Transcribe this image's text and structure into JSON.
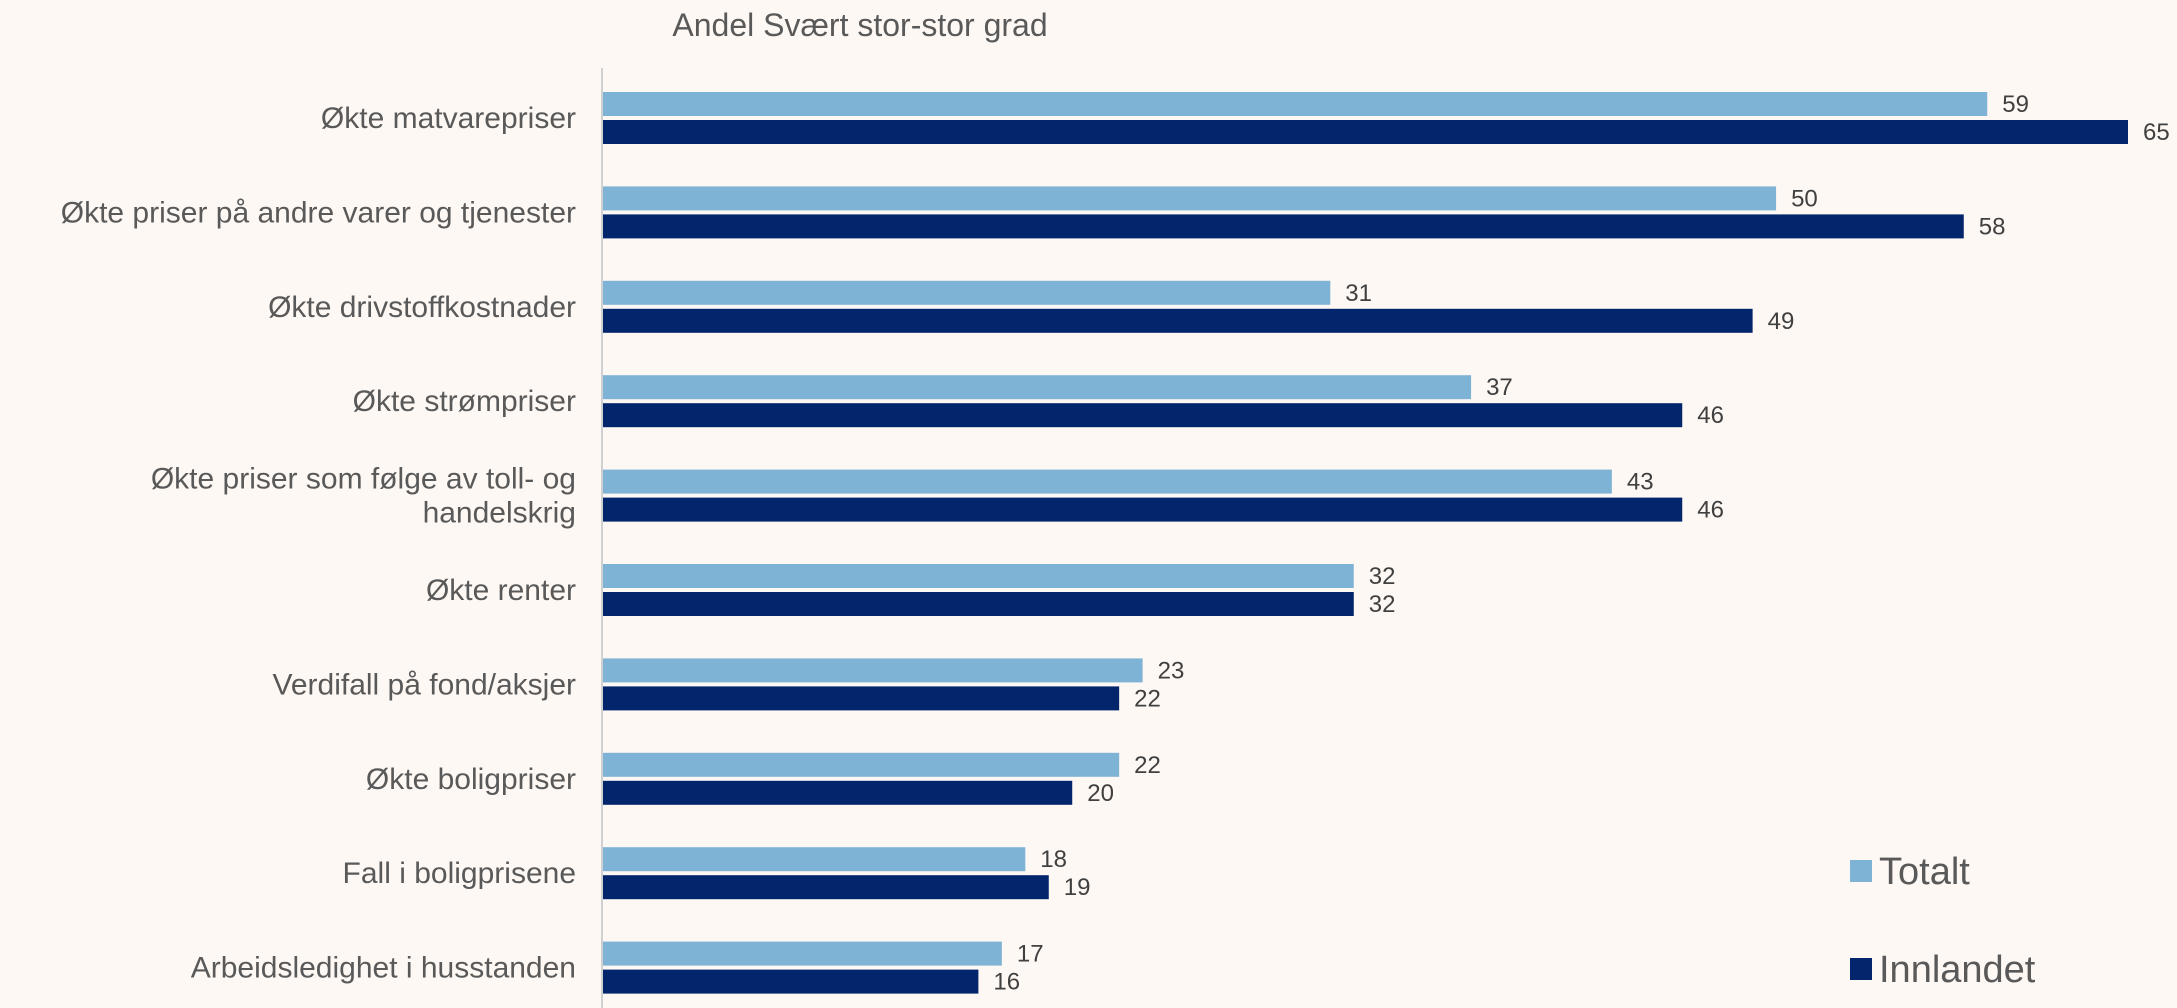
{
  "chart_data": {
    "type": "bar",
    "orientation": "horizontal",
    "title": "Andel Svært stor-stor grad",
    "categories": [
      "Økte matvarepriser",
      "Økte priser på andre varer og tjenester",
      "Økte drivstoffkostnader",
      "Økte strømpriser",
      "Økte priser som følge av toll- og handelskrig",
      "Økte renter",
      "Verdifall på fond/aksjer",
      "Økte boligpriser",
      "Fall i boligprisene",
      "Arbeidsledighet i husstanden"
    ],
    "series": [
      {
        "name": "Totalt",
        "color": "#7fb3d5",
        "values": [
          59,
          50,
          31,
          37,
          43,
          32,
          23,
          22,
          18,
          17
        ]
      },
      {
        "name": "Innlandet",
        "color": "#03256c",
        "values": [
          65,
          58,
          49,
          46,
          46,
          32,
          22,
          20,
          19,
          16
        ]
      }
    ],
    "xlim": [
      0,
      65
    ],
    "grid": false,
    "legend": "bottom-right",
    "data_labels": true
  }
}
